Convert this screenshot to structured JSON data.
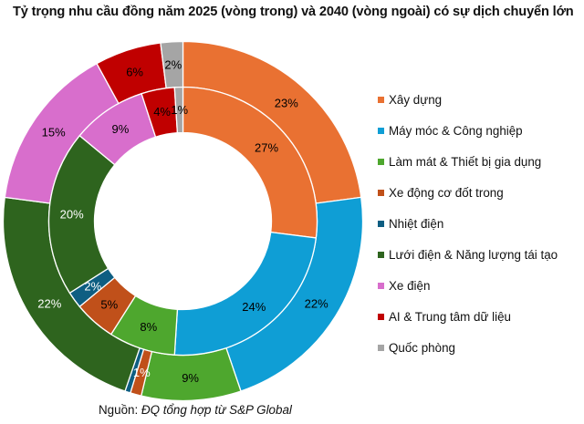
{
  "title": "Tỷ trọng nhu cầu đồng năm 2025 (vòng trong) và 2040 (vòng ngoài) có sự dịch chuyển lớn",
  "source": {
    "label": "Nguồn:",
    "text": "ĐQ tổng hợp từ S&P Global"
  },
  "chart_data": {
    "type": "pie",
    "subtype": "donut",
    "title": "Tỷ trọng nhu cầu đồng năm 2025 (vòng trong) và 2040 (vòng ngoài) có sự dịch chuyển lớn",
    "categories": [
      "Xây dựng",
      "Máy móc & Công nghiệp",
      "Làm mát & Thiết bị gia dụng",
      "Xe động cơ đốt trong",
      "Nhiệt điện",
      "Lưới điện & Năng lượng tái tạo",
      "Xe điện",
      "AI & Trung tâm dữ liệu",
      "Quốc phòng"
    ],
    "colors": [
      "#E97132",
      "#0F9ED5",
      "#4EA72E",
      "#C0501A",
      "#0E5E82",
      "#2E641E",
      "#D86ECC",
      "#C00000",
      "#A5A5A5"
    ],
    "series": [
      {
        "name": "2025",
        "ring": "inner",
        "values": [
          27,
          24,
          8,
          5,
          2,
          20,
          9,
          4,
          1
        ],
        "labels": [
          "27%",
          "24%",
          "8%",
          "5%",
          "2%",
          "20%",
          "9%",
          "4%",
          "1%"
        ]
      },
      {
        "name": "2040",
        "ring": "outer",
        "values": [
          23,
          22,
          9,
          1,
          0.5,
          22,
          15,
          6,
          2
        ],
        "labels": [
          "23%",
          "22%",
          "9%",
          "1%",
          "",
          "22%",
          "15%",
          "6%",
          "2%"
        ]
      }
    ],
    "label_text_colors": [
      "#000000",
      "#000000",
      "#000000",
      "#000000",
      "#ffffff",
      "#ffffff",
      "#000000",
      "#000000",
      "#000000"
    ],
    "outer_label_text_colors": [
      "#000000",
      "#000000",
      "#000000",
      "#ffffff",
      "#ffffff",
      "#ffffff",
      "#000000",
      "#000000",
      "#000000"
    ],
    "start_angle": "top, clockwise",
    "legend_position": "right"
  }
}
